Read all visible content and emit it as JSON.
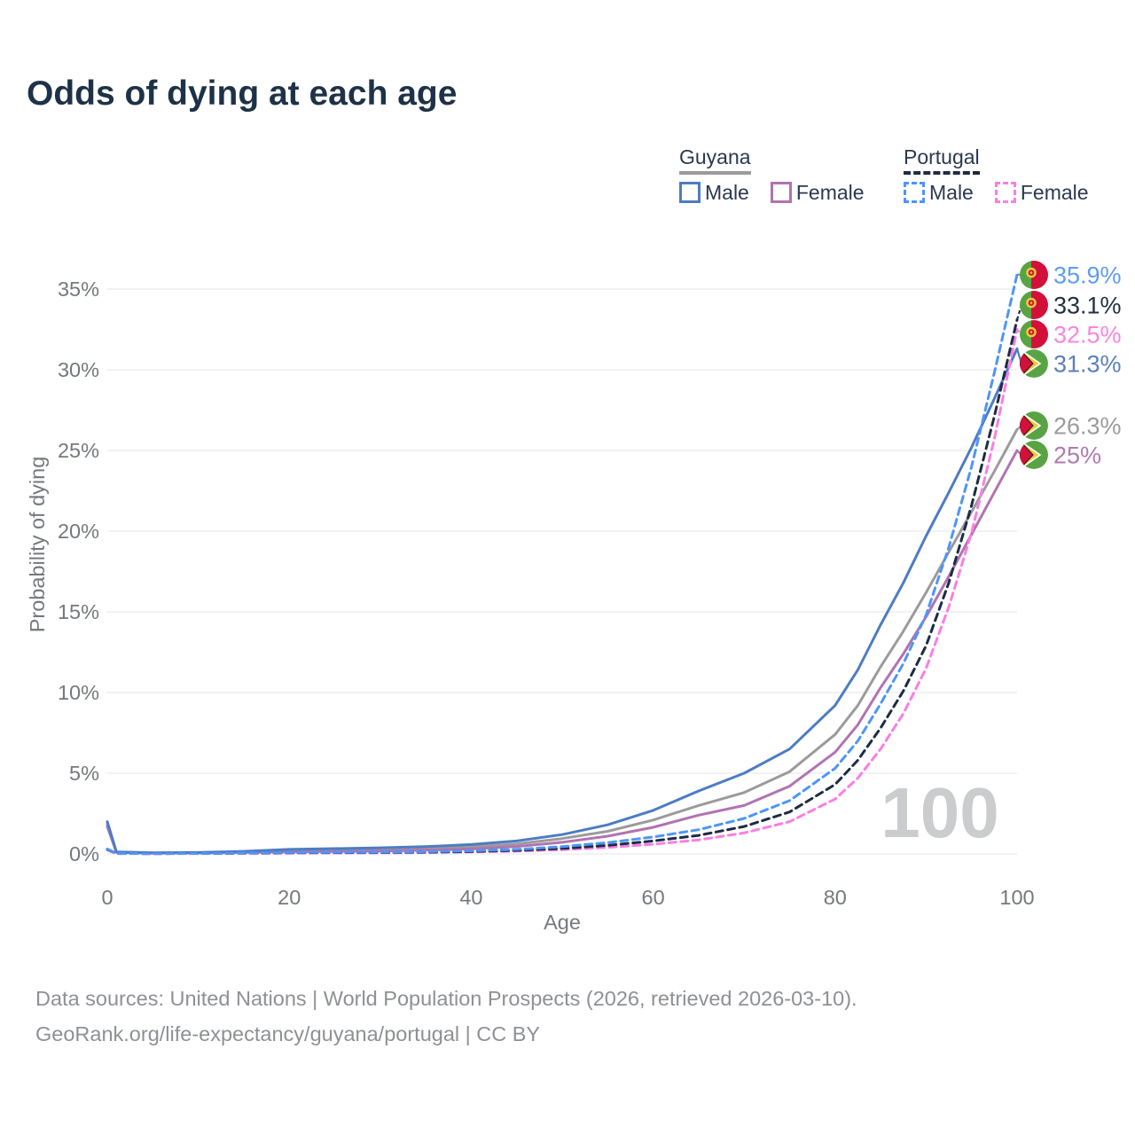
{
  "title": "Odds of dying at each age",
  "legend": {
    "groups": [
      {
        "name": "Guyana",
        "line_style": "solid",
        "underline_color": "#9b9b9b",
        "items": [
          {
            "label": "Male",
            "color": "#4d7cc3"
          },
          {
            "label": "Female",
            "color": "#b173b1"
          }
        ]
      },
      {
        "name": "Portugal",
        "line_style": "dashed",
        "underline_color": "#1d2c43",
        "items": [
          {
            "label": "Male",
            "color": "#4e95fa"
          },
          {
            "label": "Female",
            "color": "#fb7ee3"
          }
        ]
      }
    ]
  },
  "watermark": "100",
  "footer": {
    "line1": "Data sources: United Nations | World Population Prospects (2026, retrieved 2026-03-10).",
    "line2": "GeoRank.org/life-expectancy/guyana/portugal | CC BY"
  },
  "chart_data": {
    "type": "line",
    "title": "Odds of dying at each age",
    "xlabel": "Age",
    "ylabel": "Probability of dying",
    "xlim": [
      0,
      100
    ],
    "ylim_pct": [
      0,
      36.5
    ],
    "x_ticks": [
      0,
      20,
      40,
      60,
      80,
      100
    ],
    "y_ticks_pct": [
      0,
      5,
      10,
      15,
      20,
      25,
      30,
      35
    ],
    "y_tick_suffix": "%",
    "grid": "horizontal",
    "legend_position": "top-right",
    "x": [
      0,
      1,
      5,
      10,
      15,
      20,
      25,
      30,
      35,
      40,
      45,
      50,
      55,
      60,
      65,
      70,
      75,
      80,
      82.5,
      85,
      87.5,
      90,
      92.5,
      95,
      97.5,
      100
    ],
    "series": [
      {
        "name": "Portugal Male",
        "country": "Portugal",
        "sex": "male",
        "color": "#4e95fa",
        "dash": true,
        "flag": "portugal",
        "end_label": "35.9%",
        "label_color": "#5e9cf5",
        "values_pct": [
          0.3,
          0.03,
          0.02,
          0.03,
          0.06,
          0.09,
          0.1,
          0.11,
          0.14,
          0.19,
          0.28,
          0.45,
          0.7,
          1.05,
          1.5,
          2.2,
          3.3,
          5.3,
          7.0,
          9.3,
          11.8,
          14.8,
          19.0,
          24.0,
          29.8,
          35.9
        ]
      },
      {
        "name": "Portugal Total",
        "country": "Portugal",
        "sex": "both",
        "color": "#1d2c43",
        "dash": true,
        "flag": "portugal",
        "end_label": "33.1%",
        "label_color": "#222f43",
        "values_pct": [
          0.28,
          0.025,
          0.02,
          0.025,
          0.05,
          0.07,
          0.08,
          0.09,
          0.11,
          0.15,
          0.22,
          0.34,
          0.53,
          0.8,
          1.15,
          1.7,
          2.6,
          4.3,
          5.8,
          7.8,
          10.1,
          12.9,
          16.8,
          21.6,
          27.1,
          33.1
        ]
      },
      {
        "name": "Portugal Female",
        "country": "Portugal",
        "sex": "female",
        "color": "#fb7ee3",
        "dash": true,
        "flag": "portugal",
        "end_label": "32.5%",
        "label_color": "#fa85e0",
        "values_pct": [
          0.25,
          0.02,
          0.015,
          0.02,
          0.035,
          0.05,
          0.055,
          0.065,
          0.085,
          0.12,
          0.17,
          0.26,
          0.4,
          0.6,
          0.87,
          1.3,
          2.0,
          3.4,
          4.7,
          6.5,
          8.7,
          11.5,
          15.3,
          19.9,
          25.7,
          32.5
        ]
      },
      {
        "name": "Guyana Male",
        "country": "Guyana",
        "sex": "male",
        "color": "#4d7cc3",
        "dash": false,
        "flag": "guyana",
        "end_label": "31.3%",
        "label_color": "#5b7fbd",
        "values_pct": [
          2.0,
          0.12,
          0.07,
          0.09,
          0.16,
          0.28,
          0.33,
          0.38,
          0.45,
          0.58,
          0.8,
          1.2,
          1.8,
          2.7,
          3.9,
          5.0,
          6.5,
          9.2,
          11.4,
          14.2,
          16.8,
          19.7,
          22.4,
          25.2,
          28.2,
          31.3
        ]
      },
      {
        "name": "Guyana Total",
        "country": "Guyana",
        "sex": "both",
        "color": "#9b9b9b",
        "dash": false,
        "flag": "guyana",
        "end_label": "26.3%",
        "label_color": "#9b9b9b",
        "values_pct": [
          1.85,
          0.11,
          0.06,
          0.07,
          0.12,
          0.2,
          0.24,
          0.28,
          0.34,
          0.44,
          0.62,
          0.95,
          1.4,
          2.1,
          3.0,
          3.8,
          5.1,
          7.4,
          9.2,
          11.6,
          13.8,
          16.2,
          18.7,
          21.2,
          23.7,
          26.3
        ]
      },
      {
        "name": "Guyana Female",
        "country": "Guyana",
        "sex": "female",
        "color": "#b173b1",
        "dash": false,
        "flag": "guyana",
        "end_label": "25%",
        "label_color": "#b279b2",
        "values_pct": [
          1.7,
          0.1,
          0.05,
          0.06,
          0.09,
          0.13,
          0.15,
          0.18,
          0.23,
          0.31,
          0.46,
          0.72,
          1.1,
          1.65,
          2.4,
          3.0,
          4.2,
          6.3,
          8.0,
          10.3,
          12.4,
          14.7,
          17.2,
          19.8,
          22.4,
          25.0
        ]
      }
    ]
  }
}
